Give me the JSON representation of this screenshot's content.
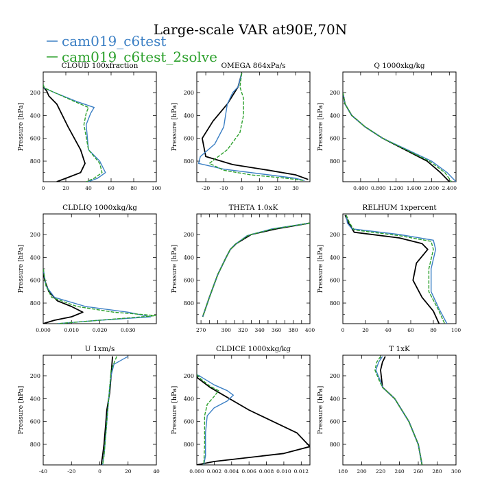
{
  "figure": {
    "title": "Large-scale VAR at90E,70N",
    "legend": [
      {
        "name": "cam019_c6test",
        "color": "#3b7fc4"
      },
      {
        "name": "cam019_c6test_2solve",
        "color": "#2ca02c"
      }
    ],
    "ylabel": "Pressure [hPa]"
  },
  "colors": {
    "control": "#000000",
    "test": "#3b7fc4",
    "test2": "#2ca02c"
  },
  "chart_data": [
    {
      "type": "line",
      "title": "CLOUD  100xfraction",
      "ylabel": "Pressure [hPa]",
      "xlim": [
        0,
        100
      ],
      "ylim": [
        980,
        20
      ],
      "xticks": [
        0,
        20,
        40,
        60,
        80,
        100
      ],
      "xtick_labels": [
        "0",
        "20",
        "40",
        "60",
        "80",
        "100"
      ],
      "yticks": [
        200,
        400,
        600,
        800
      ],
      "ytick_labels": [
        "200",
        "400",
        "600",
        "800"
      ],
      "series": [
        {
          "role": "control",
          "x": [
            0,
            3,
            5,
            12,
            22,
            33,
            37,
            33,
            20,
            12
          ],
          "y": [
            150,
            185,
            230,
            300,
            500,
            700,
            820,
            900,
            950,
            980
          ]
        },
        {
          "role": "test",
          "x": [
            0,
            1,
            10,
            30,
            45,
            42,
            38,
            40,
            50,
            55,
            48,
            40
          ],
          "y": [
            130,
            160,
            200,
            280,
            330,
            380,
            480,
            700,
            800,
            900,
            950,
            980
          ]
        },
        {
          "role": "test2",
          "x": [
            0,
            1,
            10,
            28,
            40,
            38,
            36,
            40,
            50,
            52,
            45,
            38
          ],
          "y": [
            130,
            160,
            200,
            280,
            330,
            380,
            480,
            700,
            820,
            900,
            950,
            980
          ]
        }
      ]
    },
    {
      "type": "line",
      "title": "OMEGA  864xPa/s",
      "ylabel": "Pressure [hPa]",
      "xlim": [
        -25,
        38
      ],
      "ylim": [
        980,
        20
      ],
      "xticks": [
        -20,
        -10,
        0,
        10,
        20,
        30
      ],
      "xtick_labels": [
        "-20",
        "-10",
        "0",
        "10",
        "20",
        "30"
      ],
      "yticks": [
        200,
        400,
        600,
        800
      ],
      "ytick_labels": [
        "200",
        "400",
        "600",
        "800"
      ],
      "series": [
        {
          "role": "control",
          "x": [
            0,
            -2,
            -8,
            -16,
            -22,
            -20,
            -5,
            15,
            30,
            37
          ],
          "y": [
            30,
            150,
            300,
            450,
            600,
            760,
            830,
            880,
            920,
            960
          ]
        },
        {
          "role": "test",
          "x": [
            0,
            -2,
            -5,
            -8,
            -10,
            -15,
            -23,
            -24,
            -10,
            15,
            30,
            35
          ],
          "y": [
            30,
            150,
            200,
            300,
            500,
            650,
            760,
            820,
            870,
            920,
            950,
            970
          ]
        },
        {
          "role": "test2",
          "x": [
            0,
            -1,
            1,
            1,
            -1,
            -8,
            -18,
            -10,
            5,
            25,
            35
          ],
          "y": [
            30,
            150,
            250,
            400,
            550,
            700,
            820,
            880,
            920,
            950,
            970
          ]
        }
      ]
    },
    {
      "type": "line",
      "title": "Q  1000xkg/kg",
      "ylabel": "Pressure [hPa]",
      "xlim": [
        0,
        2.55
      ],
      "ylim": [
        980,
        20
      ],
      "xticks": [
        0.4,
        0.8,
        1.2,
        1.6,
        2.0,
        2.4
      ],
      "xtick_labels": [
        "0.400",
        "0.800",
        "1.200",
        "1.600",
        "2.000",
        "2.400"
      ],
      "yticks": [
        200,
        400,
        600,
        800
      ],
      "ytick_labels": [
        "200",
        "400",
        "600",
        "800"
      ],
      "series": [
        {
          "role": "control",
          "x": [
            0,
            0.05,
            0.2,
            0.5,
            0.9,
            1.4,
            1.9,
            2.2,
            2.4
          ],
          "y": [
            200,
            300,
            400,
            500,
            600,
            700,
            800,
            900,
            980
          ]
        },
        {
          "role": "test",
          "x": [
            0,
            0.05,
            0.2,
            0.5,
            0.9,
            1.45,
            2.0,
            2.35,
            2.55
          ],
          "y": [
            200,
            300,
            400,
            500,
            600,
            700,
            800,
            900,
            980
          ]
        },
        {
          "role": "test2",
          "x": [
            0,
            0.05,
            0.2,
            0.5,
            0.9,
            1.42,
            1.95,
            2.3,
            2.45
          ],
          "y": [
            200,
            300,
            400,
            500,
            600,
            700,
            800,
            900,
            980
          ]
        }
      ]
    },
    {
      "type": "line",
      "title": "CLDLIQ  1000xkg/kg",
      "ylabel": "Pressure [hPa]",
      "xlim": [
        0,
        0.04
      ],
      "ylim": [
        980,
        20
      ],
      "xticks": [
        0,
        0.01,
        0.02,
        0.03
      ],
      "xtick_labels": [
        "0.000",
        "0.010",
        "0.020",
        "0.030"
      ],
      "yticks": [
        200,
        400,
        600,
        800
      ],
      "ytick_labels": [
        "200",
        "400",
        "600",
        "800"
      ],
      "series": [
        {
          "role": "control",
          "x": [
            0,
            0.0005,
            0.002,
            0.005,
            0.01,
            0.014,
            0.01,
            0.004,
            0
          ],
          "y": [
            500,
            600,
            700,
            780,
            830,
            880,
            920,
            950,
            980
          ]
        },
        {
          "role": "test",
          "x": [
            0,
            0.001,
            0.004,
            0.015,
            0.03,
            0.038,
            0.02,
            0.005
          ],
          "y": [
            500,
            650,
            750,
            830,
            880,
            920,
            950,
            980
          ]
        },
        {
          "role": "test2",
          "x": [
            0,
            0.001,
            0.003,
            0.012,
            0.025,
            0.04,
            0.02,
            0.005
          ],
          "y": [
            500,
            650,
            750,
            830,
            880,
            910,
            950,
            980
          ]
        }
      ]
    },
    {
      "type": "line",
      "title": "THETA  1.0xK",
      "ylabel": "Pressure [hPa]",
      "xlim": [
        265,
        400
      ],
      "ylim": [
        980,
        20
      ],
      "xticks": [
        270,
        280,
        290,
        300,
        310,
        320,
        330,
        340,
        350,
        360,
        370,
        380,
        390,
        400
      ],
      "xtick_labels": [
        "270",
        "",
        "",
        "300",
        "",
        "320",
        "",
        "340",
        "",
        "360",
        "",
        "380",
        "",
        "400"
      ],
      "yticks": [
        200,
        400,
        600,
        800
      ],
      "ytick_labels": [
        "200",
        "400",
        "600",
        "800"
      ],
      "series": [
        {
          "role": "control",
          "x": [
            400,
            360,
            330,
            312,
            305,
            300,
            290,
            280,
            272
          ],
          "y": [
            100,
            150,
            200,
            280,
            330,
            400,
            550,
            750,
            920
          ]
        },
        {
          "role": "test",
          "x": [
            400,
            355,
            325,
            310,
            305,
            300,
            290,
            280,
            272
          ],
          "y": [
            100,
            150,
            210,
            290,
            330,
            400,
            550,
            750,
            920
          ]
        },
        {
          "role": "test2",
          "x": [
            400,
            357,
            327,
            311,
            305,
            300,
            290,
            280,
            272
          ],
          "y": [
            100,
            150,
            205,
            285,
            330,
            400,
            550,
            750,
            920
          ]
        }
      ]
    },
    {
      "type": "line",
      "title": "RELHUM  1xpercent",
      "ylabel": "Pressure [hPa]",
      "xlim": [
        0,
        100
      ],
      "ylim": [
        980,
        20
      ],
      "xticks": [
        0,
        20,
        40,
        60,
        80,
        100
      ],
      "xtick_labels": [
        "0",
        "20",
        "40",
        "60",
        "80",
        "100"
      ],
      "yticks": [
        200,
        400,
        600,
        800
      ],
      "ytick_labels": [
        "200",
        "400",
        "600",
        "800"
      ],
      "series": [
        {
          "role": "control",
          "x": [
            2,
            5,
            10,
            50,
            70,
            75,
            65,
            62,
            70,
            80,
            85
          ],
          "y": [
            30,
            100,
            180,
            230,
            280,
            330,
            450,
            600,
            750,
            870,
            980
          ]
        },
        {
          "role": "test",
          "x": [
            3,
            4,
            8,
            50,
            80,
            82,
            78,
            78,
            85,
            92
          ],
          "y": [
            30,
            100,
            150,
            200,
            250,
            330,
            500,
            700,
            850,
            980
          ]
        },
        {
          "role": "test2",
          "x": [
            3,
            6,
            10,
            50,
            78,
            80,
            76,
            76,
            84,
            90
          ],
          "y": [
            30,
            100,
            160,
            210,
            260,
            330,
            500,
            700,
            850,
            980
          ]
        }
      ]
    },
    {
      "type": "line",
      "title": "U  1xm/s",
      "ylabel": "Pressure [hPa]",
      "xlim": [
        -40,
        40
      ],
      "ylim": [
        980,
        20
      ],
      "xticks": [
        -40,
        -20,
        0,
        20,
        40
      ],
      "xtick_labels": [
        "-40",
        "-20",
        "0",
        "20",
        "40"
      ],
      "yticks": [
        200,
        400,
        600,
        800
      ],
      "ytick_labels": [
        "200",
        "400",
        "600",
        "800"
      ],
      "series": [
        {
          "role": "control",
          "x": [
            9,
            8,
            7,
            5,
            4,
            3,
            2,
            1
          ],
          "y": [
            30,
            200,
            350,
            500,
            650,
            800,
            900,
            980
          ]
        },
        {
          "role": "test",
          "x": [
            20,
            10,
            8,
            7,
            6,
            5,
            4,
            3,
            2
          ],
          "y": [
            30,
            100,
            200,
            300,
            450,
            600,
            750,
            900,
            980
          ]
        },
        {
          "role": "test2",
          "x": [
            12,
            8,
            7,
            6,
            5,
            4,
            3,
            2
          ],
          "y": [
            30,
            150,
            300,
            450,
            600,
            750,
            900,
            980
          ]
        }
      ]
    },
    {
      "type": "line",
      "title": "CLDICE  1000xkg/kg",
      "ylabel": "Pressure [hPa]",
      "xlim": [
        0,
        0.013
      ],
      "ylim": [
        980,
        20
      ],
      "xticks": [
        0,
        0.002,
        0.004,
        0.006,
        0.008,
        0.01,
        0.012
      ],
      "xtick_labels": [
        "0.000",
        "0.002",
        "0.004",
        "0.006",
        "0.008",
        "0.010",
        "0.012"
      ],
      "yticks": [
        200,
        400,
        600,
        800
      ],
      "ytick_labels": [
        "200",
        "400",
        "600",
        "800"
      ],
      "series": [
        {
          "role": "control",
          "x": [
            0,
            0.0001,
            0.0015,
            0.006,
            0.0115,
            0.013,
            0.01,
            0.002,
            0
          ],
          "y": [
            200,
            220,
            300,
            500,
            700,
            820,
            880,
            950,
            980
          ]
        },
        {
          "role": "test",
          "x": [
            0,
            0.0005,
            0.002,
            0.0035,
            0.0042,
            0.0035,
            0.002,
            0.0012,
            0.001,
            0.001,
            0.0008
          ],
          "y": [
            190,
            210,
            280,
            330,
            370,
            420,
            480,
            550,
            700,
            900,
            980
          ]
        },
        {
          "role": "test2",
          "x": [
            0,
            0.0005,
            0.0015,
            0.0025,
            0.002,
            0.0012,
            0.0009,
            0.0009,
            0.0008
          ],
          "y": [
            190,
            230,
            290,
            330,
            380,
            450,
            550,
            800,
            980
          ]
        }
      ]
    },
    {
      "type": "line",
      "title": "T  1xK",
      "ylabel": "Pressure [hPa]",
      "xlim": [
        180,
        300
      ],
      "ylim": [
        980,
        20
      ],
      "xticks": [
        180,
        200,
        220,
        240,
        260,
        280,
        300
      ],
      "xtick_labels": [
        "180",
        "200",
        "220",
        "240",
        "260",
        "280",
        "300"
      ],
      "yticks": [
        200,
        400,
        600,
        800
      ],
      "ytick_labels": [
        "200",
        "400",
        "600",
        "800"
      ],
      "series": [
        {
          "role": "control",
          "x": [
            225,
            222,
            220,
            222,
            235,
            250,
            260,
            264
          ],
          "y": [
            30,
            80,
            150,
            300,
            400,
            600,
            800,
            980
          ]
        },
        {
          "role": "test",
          "x": [
            222,
            218,
            215,
            220,
            222,
            235,
            250,
            260,
            264
          ],
          "y": [
            30,
            80,
            150,
            250,
            300,
            400,
            600,
            800,
            980
          ]
        },
        {
          "role": "test2",
          "x": [
            220,
            216,
            214,
            219,
            222,
            235,
            250,
            260,
            264
          ],
          "y": [
            30,
            80,
            150,
            250,
            300,
            400,
            600,
            800,
            980
          ]
        }
      ]
    }
  ]
}
